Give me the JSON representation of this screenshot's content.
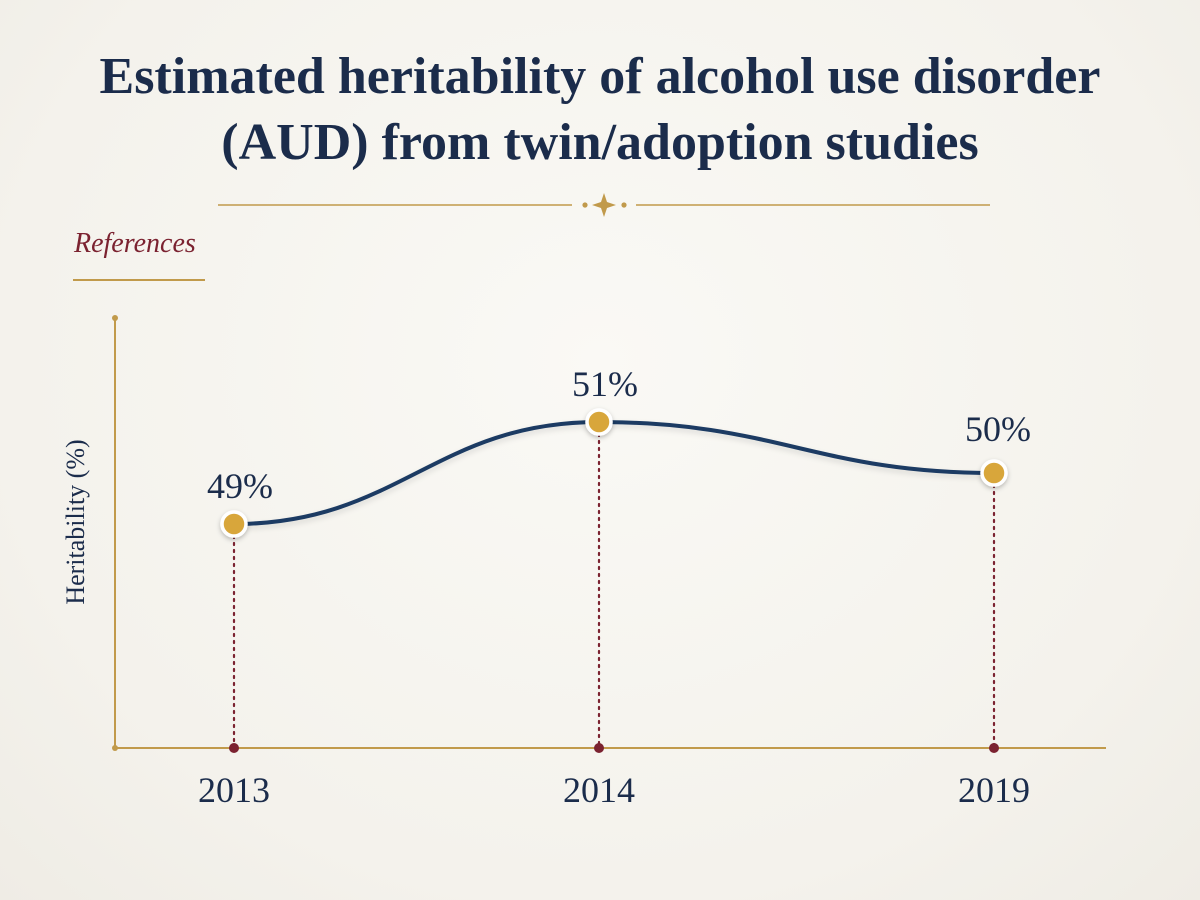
{
  "title_lines": [
    "Estimated heritability of alcohol use disorder",
    "(AUD) from twin/adoption studies"
  ],
  "subheading": "References",
  "colors": {
    "line": "#1b3a63",
    "marker_fill": "#d8a63a",
    "axis": "#c19a4b",
    "dotted": "#7b2230",
    "text": "#1b2c4b",
    "accent_red": "#7b2230"
  },
  "chart_data": {
    "type": "line",
    "title": "Estimated heritability of alcohol use disorder (AUD) from twin/adoption studies",
    "xlabel": "",
    "ylabel": "Heritability (%)",
    "categories": [
      "2013",
      "2014",
      "2019"
    ],
    "series": [
      {
        "values": [
          49,
          51,
          50
        ],
        "labels": [
          "49%",
          "51%",
          "50%"
        ]
      }
    ],
    "smooth": true,
    "grid": false,
    "legend": "none"
  }
}
